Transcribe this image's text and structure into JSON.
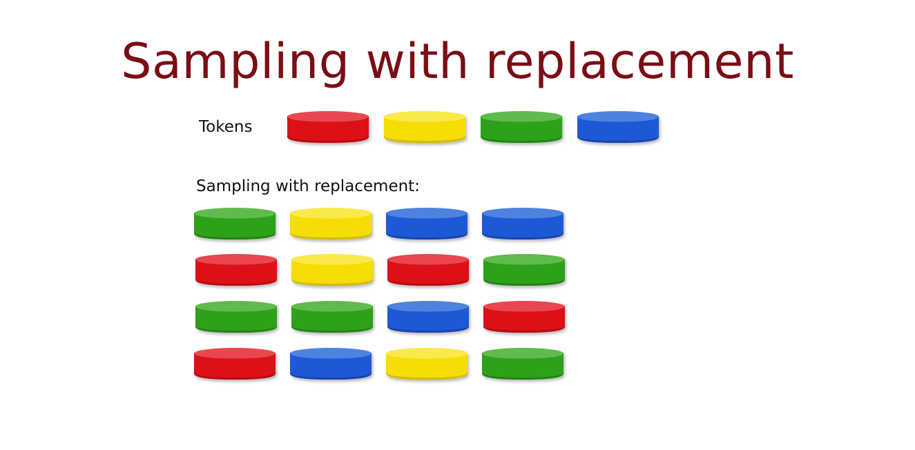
{
  "title": "Sampling with replacement",
  "tokens_label": "Tokens",
  "sampling_label": "Sampling with replacement:",
  "colors": {
    "red": {
      "top": "#e8474e",
      "side": "#dd0f17",
      "edge": "#b70b12"
    },
    "yellow": {
      "top": "#fbe94c",
      "side": "#f5dd06",
      "edge": "#d4bd00"
    },
    "green": {
      "top": "#5fbb4b",
      "side": "#2ea11a",
      "edge": "#228313"
    },
    "blue": {
      "top": "#4d82df",
      "side": "#1d59d6",
      "edge": "#1644b0"
    }
  },
  "tokens": [
    "red",
    "yellow",
    "green",
    "blue"
  ],
  "samples": [
    [
      "green",
      "yellow",
      "blue",
      "blue"
    ],
    [
      "red",
      "yellow",
      "red",
      "green"
    ],
    [
      "green",
      "green",
      "blue",
      "red"
    ],
    [
      "red",
      "blue",
      "yellow",
      "green"
    ]
  ]
}
